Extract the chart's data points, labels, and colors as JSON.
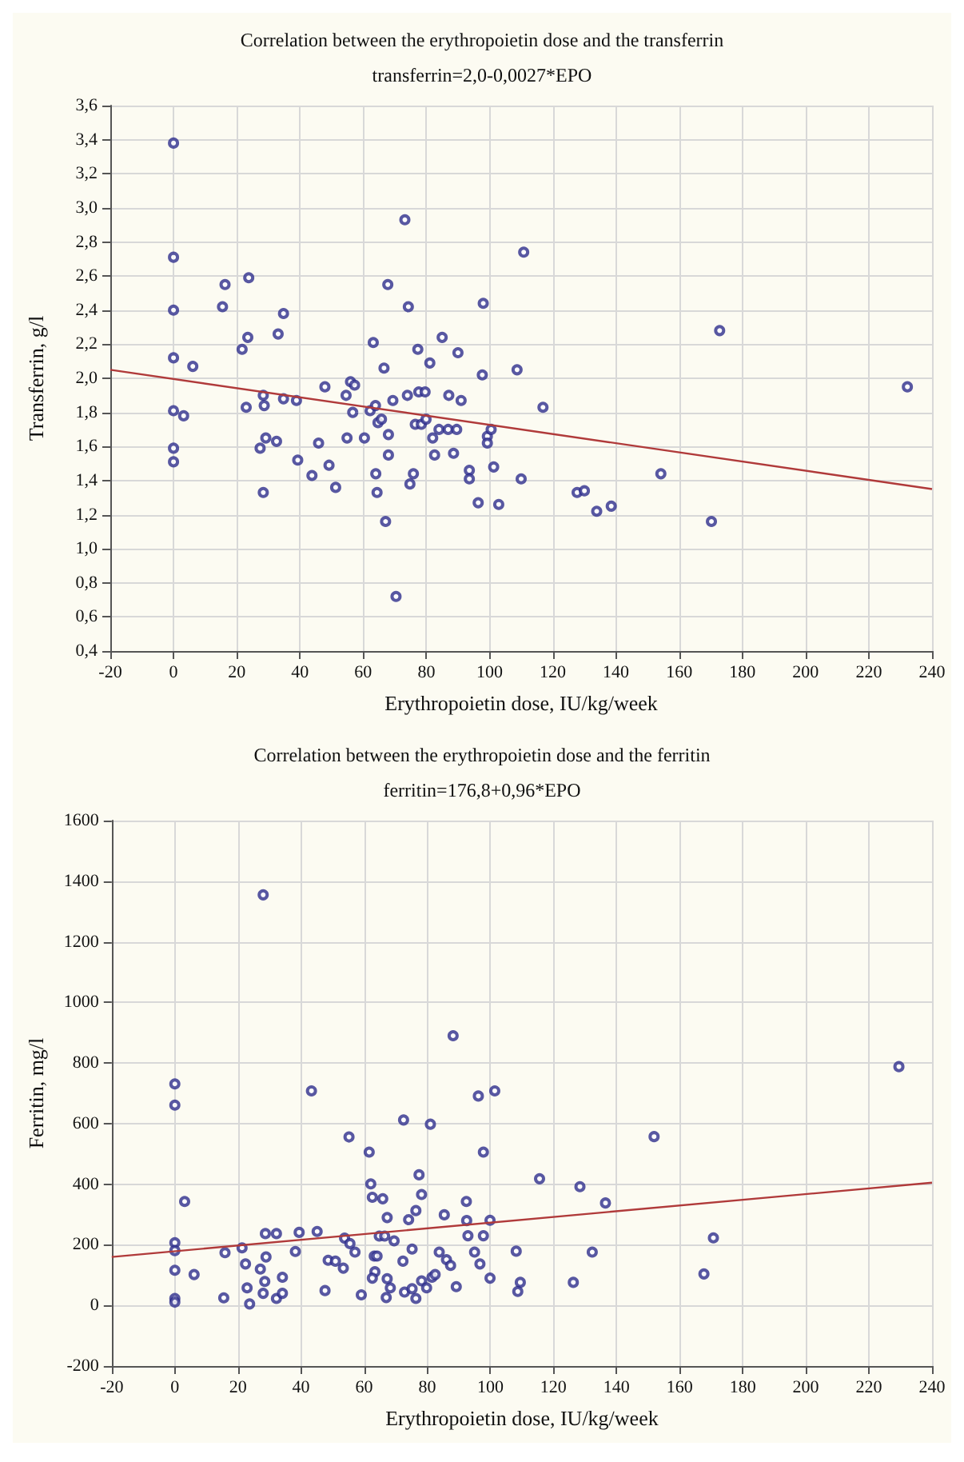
{
  "chart_data": [
    {
      "type": "scatter",
      "title": "Correlation between the erythropoietin dose and the transferrin",
      "subtitle": "transferrin=2,0-0,0027*EPO",
      "xlabel": "Erythropoietin dose, IU/kg/week",
      "ylabel": "Transferrin, g/l",
      "grid": true,
      "marker": "circle",
      "xlim": [
        -20,
        240
      ],
      "xticks": [
        -20,
        0,
        20,
        40,
        60,
        80,
        100,
        120,
        140,
        160,
        180,
        200,
        220,
        240
      ],
      "ylim": [
        0.4,
        3.6
      ],
      "yticks": [
        {
          "value": 0.4,
          "label": "0,4"
        },
        {
          "value": 0.6,
          "label": "0,6"
        },
        {
          "value": 0.8,
          "label": "0,8"
        },
        {
          "value": 1.0,
          "label": "1,0"
        },
        {
          "value": 1.2,
          "label": "1,2"
        },
        {
          "value": 1.4,
          "label": "1,4"
        },
        {
          "value": 1.6,
          "label": "1,6"
        },
        {
          "value": 1.8,
          "label": "1,8"
        },
        {
          "value": 2.0,
          "label": "2,0"
        },
        {
          "value": 2.2,
          "label": "2,2"
        },
        {
          "value": 2.4,
          "label": "2,4"
        },
        {
          "value": 2.6,
          "label": "2,6"
        },
        {
          "value": 2.8,
          "label": "2,8"
        },
        {
          "value": 3.0,
          "label": "3,0"
        },
        {
          "value": 3.2,
          "label": "3,2"
        },
        {
          "value": 3.4,
          "label": "3,4"
        },
        {
          "value": 3.6,
          "label": "3,6"
        }
      ],
      "series": [
        {
          "color": "#2e2e8c",
          "x": [
            0,
            0,
            0,
            0,
            0,
            3.2,
            0,
            0,
            6.1,
            15.5,
            16.3,
            23.8,
            23.5,
            21.7,
            23,
            28.4,
            28.7,
            27.4,
            29.2,
            32.6,
            28.4,
            33.1,
            34.8,
            34.8,
            38.9,
            39.3,
            43.8,
            45.9,
            47.9,
            49.2,
            51.3,
            54.6,
            56.0,
            57.3,
            56.7,
            54.9,
            60.4,
            63.2,
            66.6,
            67.8,
            73.2,
            74.3,
            62.2,
            63.9,
            64.7,
            65.8,
            68.0,
            69.4,
            68.0,
            64.0,
            64.4,
            67.1,
            70.4,
            74.0,
            77.3,
            77.6,
            79.6,
            76.5,
            78.4,
            79.9,
            75.9,
            74.8,
            81.1,
            85.0,
            90.0,
            87.1,
            91.0,
            82.0,
            84.0,
            86.9,
            89.6,
            82.6,
            88.6,
            93.6,
            93.6,
            96.4,
            102.9,
            101.3,
            98.0,
            97.7,
            99.3,
            100.5,
            99.3,
            110.8,
            108.7,
            116.9,
            110.0,
            127.7,
            130.0,
            133.9,
            138.5,
            154.2,
            170.2,
            172.8,
            232.2
          ],
          "values": [
            3.38,
            2.71,
            2.4,
            2.12,
            1.81,
            1.78,
            1.59,
            1.51,
            2.07,
            2.42,
            2.55,
            2.59,
            2.24,
            2.17,
            1.83,
            1.9,
            1.84,
            1.59,
            1.65,
            1.63,
            1.33,
            2.26,
            2.38,
            1.88,
            1.87,
            1.52,
            1.43,
            1.62,
            1.95,
            1.49,
            1.36,
            1.9,
            1.98,
            1.96,
            1.8,
            1.65,
            1.65,
            2.21,
            2.06,
            2.55,
            2.93,
            2.42,
            1.81,
            1.84,
            1.74,
            1.76,
            1.67,
            1.87,
            1.55,
            1.44,
            1.33,
            1.16,
            0.72,
            1.9,
            2.17,
            1.92,
            1.92,
            1.73,
            1.73,
            1.76,
            1.44,
            1.38,
            2.09,
            2.24,
            2.15,
            1.9,
            1.87,
            1.65,
            1.7,
            1.7,
            1.7,
            1.55,
            1.56,
            1.46,
            1.41,
            1.27,
            1.26,
            1.48,
            2.44,
            2.02,
            1.66,
            1.7,
            1.62,
            2.74,
            2.05,
            1.83,
            1.41,
            1.33,
            1.34,
            1.22,
            1.25,
            1.44,
            1.16,
            2.28,
            1.95
          ]
        },
        {
          "type": "line",
          "color": "#b03a3a",
          "marker": "none",
          "x": [
            -20,
            240
          ],
          "values": [
            2.05,
            1.35
          ]
        }
      ]
    },
    {
      "type": "scatter",
      "title": "Correlation between the erythropoietin dose and the ferritin",
      "subtitle": "ferritin=176,8+0,96*EPO",
      "xlabel": "Erythropoietin dose, IU/kg/week",
      "ylabel": "Ferritin, mg/l",
      "grid": true,
      "marker": "circle",
      "xlim": [
        -20,
        240
      ],
      "xticks": [
        -20,
        0,
        20,
        40,
        60,
        80,
        100,
        120,
        140,
        160,
        180,
        200,
        220,
        240
      ],
      "ylim": [
        -200,
        1600
      ],
      "yticks": [
        -200,
        0,
        200,
        400,
        600,
        800,
        1000,
        1200,
        1400,
        1600
      ],
      "series": [
        {
          "color": "#2e2e8c",
          "x": [
            28.0,
            0,
            0,
            3.1,
            0,
            0,
            0,
            0,
            0,
            6.1,
            15.5,
            15.9,
            21.3,
            22.4,
            22.9,
            23.7,
            27.1,
            28.9,
            28.7,
            32.2,
            28.5,
            28.0,
            32.2,
            34.1,
            34.1,
            38.2,
            39.4,
            43.3,
            45.1,
            47.6,
            48.6,
            50.9,
            53.4,
            53.8,
            55.2,
            55.5,
            57.1,
            59.1,
            61.6,
            62.1,
            62.6,
            65.9,
            63.2,
            64.1,
            63.4,
            62.6,
            64.8,
            66.5,
            67.3,
            67.3,
            67.0,
            68.3,
            69.5,
            72.5,
            72.3,
            72.8,
            74.1,
            75.2,
            75.2,
            76.4,
            76.4,
            77.4,
            78.2,
            78.2,
            79.8,
            81.0,
            81.5,
            82.5,
            83.8,
            85.4,
            86.1,
            87.4,
            88.2,
            89.2,
            92.4,
            92.5,
            92.9,
            95.0,
            96.2,
            96.7,
            97.8,
            97.8,
            101.4,
            99.9,
            99.9,
            115.6,
            128.4,
            136.5,
            108.2,
            132.3,
            109.5,
            108.7,
            126.3,
            151.9,
            167.7,
            170.7,
            229.5
          ],
          "values": [
            1355,
            731,
            661,
            343,
            207,
            181,
            116,
            23,
            11,
            102,
            25,
            174,
            190,
            137,
            58,
            5,
            120,
            160,
            237,
            237,
            79,
            40,
            23,
            40,
            93,
            178,
            241,
            708,
            244,
            49,
            149,
            146,
            123,
            222,
            556,
            204,
            176,
            35,
            506,
            401,
            357,
            352,
            163,
            163,
            111,
            90,
            229,
            229,
            290,
            88,
            26,
            58,
            213,
            612,
            146,
            44,
            283,
            55,
            186,
            313,
            23,
            431,
            366,
            81,
            58,
            598,
            93,
            102,
            176,
            299,
            151,
            132,
            890,
            62,
            343,
            280,
            230,
            176,
            691,
            137,
            506,
            230,
            708,
            281,
            90,
            418,
            392,
            338,
            179,
            176,
            76,
            46,
            76,
            557,
            104,
            223,
            788
          ]
        },
        {
          "type": "line",
          "color": "#b03a3a",
          "marker": "none",
          "x": [
            -20,
            240
          ],
          "values": [
            160,
            405
          ]
        }
      ]
    }
  ]
}
